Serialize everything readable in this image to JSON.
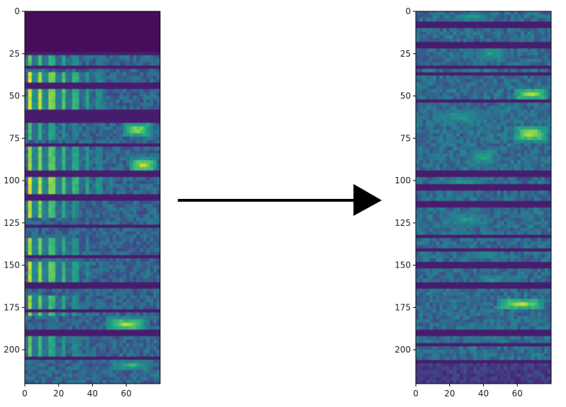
{
  "chart_data": [
    {
      "type": "heatmap",
      "title": "",
      "xlabel": "",
      "ylabel": "",
      "colormap": "viridis",
      "xlim": [
        0,
        80
      ],
      "ylim": [
        220,
        0
      ],
      "xticks": [
        0,
        20,
        40,
        60
      ],
      "yticks": [
        0,
        25,
        50,
        75,
        100,
        125,
        150,
        175,
        200
      ],
      "xtick_labels": [
        "0",
        "20",
        "40",
        "60"
      ],
      "ytick_labels": [
        "0",
        "25",
        "50",
        "75",
        "100",
        "125",
        "150",
        "175",
        "200"
      ],
      "segment_dividers_y": [
        0,
        24,
        33,
        44,
        60,
        64,
        79,
        96,
        110,
        127,
        145,
        162,
        177,
        190,
        205,
        220
      ],
      "features": [
        {
          "kind": "empty",
          "y0": 0,
          "y1": 24,
          "level": 0.02
        },
        {
          "kind": "harmonic",
          "y0": 25,
          "y1": 32,
          "x0": 2,
          "x1": 45,
          "level": 0.75
        },
        {
          "kind": "harmonic",
          "y0": 36,
          "y1": 59,
          "x0": 3,
          "x1": 48,
          "level": 0.95
        },
        {
          "kind": "harmonic",
          "y0": 65,
          "y1": 75,
          "x0": 2,
          "x1": 40,
          "level": 0.7
        },
        {
          "kind": "blob",
          "y0": 66,
          "y1": 74,
          "x0": 58,
          "x1": 75,
          "level": 0.9
        },
        {
          "kind": "harmonic",
          "y0": 80,
          "y1": 93,
          "x0": 3,
          "x1": 50,
          "level": 0.85
        },
        {
          "kind": "blob",
          "y0": 87,
          "y1": 95,
          "x0": 62,
          "x1": 78,
          "level": 0.95
        },
        {
          "kind": "harmonic",
          "y0": 97,
          "y1": 109,
          "x0": 3,
          "x1": 52,
          "level": 0.95
        },
        {
          "kind": "harmonic",
          "y0": 112,
          "y1": 122,
          "x0": 3,
          "x1": 34,
          "level": 0.9
        },
        {
          "kind": "harmonic",
          "y0": 135,
          "y1": 144,
          "x0": 3,
          "x1": 40,
          "level": 0.85
        },
        {
          "kind": "harmonic",
          "y0": 148,
          "y1": 160,
          "x0": 3,
          "x1": 42,
          "level": 0.9
        },
        {
          "kind": "harmonic",
          "y0": 168,
          "y1": 180,
          "x0": 2,
          "x1": 38,
          "level": 0.85
        },
        {
          "kind": "blob",
          "y0": 181,
          "y1": 189,
          "x0": 48,
          "x1": 72,
          "level": 0.9
        },
        {
          "kind": "harmonic",
          "y0": 192,
          "y1": 204,
          "x0": 2,
          "x1": 42,
          "level": 0.75
        },
        {
          "kind": "blob",
          "y0": 206,
          "y1": 212,
          "x0": 50,
          "x1": 75,
          "level": 0.7
        }
      ],
      "base_level": 0.32
    },
    {
      "type": "heatmap",
      "title": "",
      "xlabel": "",
      "ylabel": "",
      "colormap": "viridis",
      "xlim": [
        0,
        80
      ],
      "ylim": [
        220,
        0
      ],
      "xticks": [
        0,
        20,
        40,
        60
      ],
      "yticks": [
        0,
        25,
        50,
        75,
        100,
        125,
        150,
        175,
        200
      ],
      "xtick_labels": [
        "0",
        "20",
        "40",
        "60"
      ],
      "ytick_labels": [
        "0",
        "25",
        "50",
        "75",
        "100",
        "125",
        "150",
        "175",
        "200"
      ],
      "segment_dividers_y": [
        0,
        8,
        20,
        33,
        37,
        53,
        96,
        104,
        114,
        133,
        141,
        150,
        162,
        190,
        197,
        207,
        220
      ],
      "features": [
        {
          "kind": "blob",
          "y0": 1,
          "y1": 6,
          "x0": 20,
          "x1": 45,
          "level": 0.6
        },
        {
          "kind": "blob",
          "y0": 20,
          "y1": 30,
          "x0": 35,
          "x1": 55,
          "level": 0.6
        },
        {
          "kind": "blob",
          "y0": 46,
          "y1": 52,
          "x0": 58,
          "x1": 78,
          "level": 0.95
        },
        {
          "kind": "blob",
          "y0": 57,
          "y1": 68,
          "x0": 5,
          "x1": 45,
          "level": 0.55
        },
        {
          "kind": "blob",
          "y0": 68,
          "y1": 77,
          "x0": 58,
          "x1": 78,
          "level": 0.95
        },
        {
          "kind": "blob",
          "y0": 80,
          "y1": 92,
          "x0": 30,
          "x1": 50,
          "level": 0.6
        },
        {
          "kind": "blob",
          "y0": 98,
          "y1": 106,
          "x0": 10,
          "x1": 45,
          "level": 0.6
        },
        {
          "kind": "blob",
          "y0": 118,
          "y1": 128,
          "x0": 15,
          "x1": 45,
          "level": 0.55
        },
        {
          "kind": "blob",
          "y0": 140,
          "y1": 148,
          "x0": 25,
          "x1": 55,
          "level": 0.5
        },
        {
          "kind": "blob",
          "y0": 155,
          "y1": 162,
          "x0": 35,
          "x1": 55,
          "level": 0.55
        },
        {
          "kind": "blob",
          "y0": 170,
          "y1": 176,
          "x0": 48,
          "x1": 76,
          "level": 0.95
        },
        {
          "kind": "blob",
          "y0": 185,
          "y1": 195,
          "x0": 20,
          "x1": 60,
          "level": 0.5
        },
        {
          "kind": "dark",
          "y0": 207,
          "y1": 220,
          "x0": 0,
          "x1": 80,
          "level": 0.1
        }
      ],
      "base_level": 0.35
    }
  ],
  "arrow": {
    "color": "#000000"
  },
  "colors": {
    "axis": "#000000",
    "background": "#ffffff"
  }
}
